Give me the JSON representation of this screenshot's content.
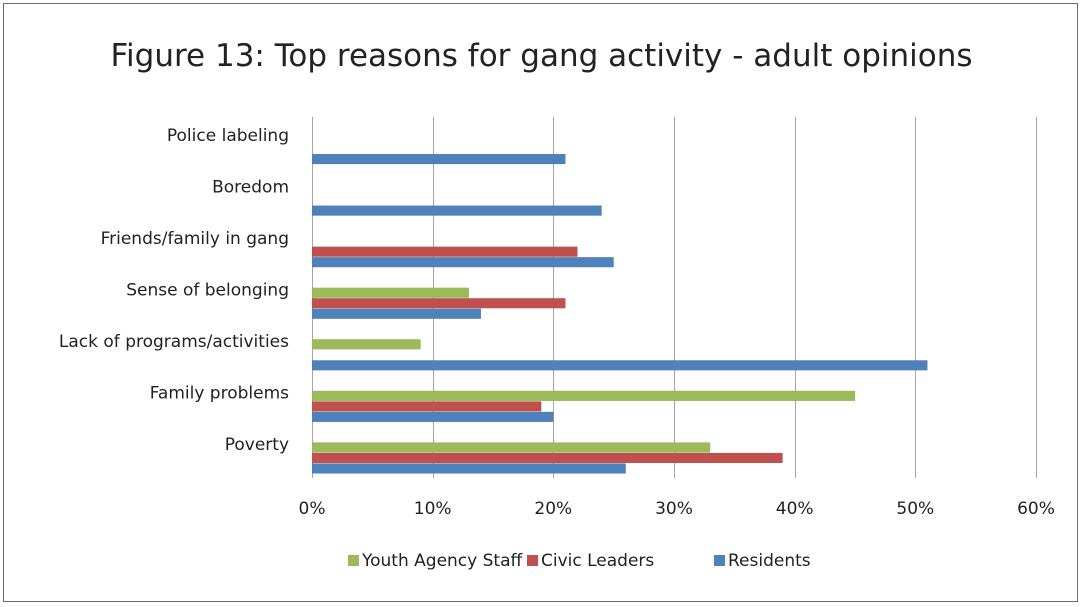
{
  "chart_data": {
    "type": "bar",
    "orientation": "horizontal",
    "title": "Figure 13: Top reasons for gang activity - adult opinions",
    "categories": [
      "Police labeling",
      "Boredom",
      "Friends/family in gang",
      "Sense of belonging",
      "Lack of programs/activities",
      "Family problems",
      "Poverty"
    ],
    "series": [
      {
        "name": "Youth Agency Staff",
        "color": "#9bbb59",
        "values": [
          null,
          null,
          null,
          13,
          9,
          45,
          33
        ]
      },
      {
        "name": "Civic Leaders",
        "color": "#c0504d",
        "values": [
          null,
          null,
          22,
          21,
          null,
          19,
          39
        ]
      },
      {
        "name": "Residents",
        "color": "#4f81bd",
        "values": [
          21,
          24,
          25,
          14,
          51,
          20,
          26
        ]
      }
    ],
    "xlim": [
      0,
      60
    ],
    "xticks": [
      0,
      10,
      20,
      30,
      40,
      50,
      60
    ],
    "xtick_labels": [
      "0%",
      "10%",
      "20%",
      "30%",
      "40%",
      "50%",
      "60%"
    ],
    "grid": "vertical",
    "legend": "bottom"
  }
}
